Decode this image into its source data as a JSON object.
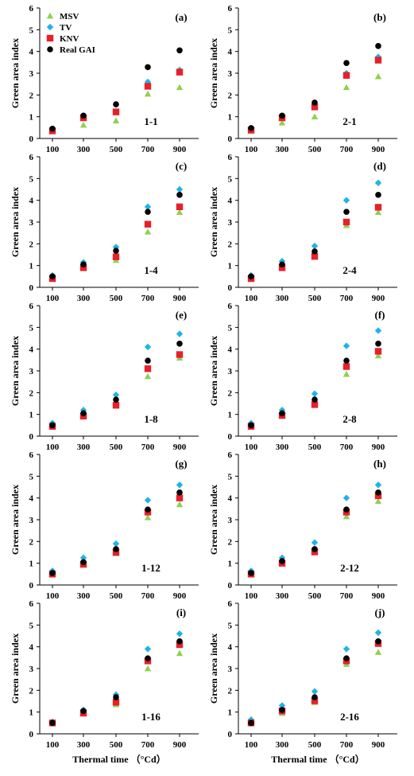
{
  "figure": {
    "xlabel": "Thermal time （°Cd）",
    "ylabel": "Green area index"
  },
  "legend": {
    "items": [
      {
        "label": "MSV",
        "color": "#92d050",
        "marker": "triangle"
      },
      {
        "label": "TV",
        "color": "#1fb4e6",
        "marker": "diamond"
      },
      {
        "label": "KNV",
        "color": "#e8202a",
        "marker": "square"
      },
      {
        "label": "Real GAI",
        "color": "#000000",
        "marker": "circle"
      }
    ]
  },
  "chart_data": [
    {
      "type": "scatter",
      "panel": "(a)",
      "code": "1-1",
      "x": [
        100,
        300,
        500,
        700,
        900
      ],
      "ylim": [
        0,
        6
      ],
      "yticks": [
        0,
        1,
        2,
        3,
        4,
        5,
        6
      ],
      "series": [
        {
          "name": "MSV",
          "values": [
            0.45,
            0.62,
            0.82,
            2.05,
            2.35
          ]
        },
        {
          "name": "TV",
          "values": [
            0.4,
            1.0,
            1.25,
            2.6,
            3.15
          ]
        },
        {
          "name": "KNV",
          "values": [
            0.35,
            0.95,
            1.22,
            2.4,
            3.05
          ]
        },
        {
          "name": "Real GAI",
          "values": [
            0.45,
            1.05,
            1.57,
            3.28,
            4.05
          ]
        }
      ]
    },
    {
      "type": "scatter",
      "panel": "(b)",
      "code": "2-1",
      "x": [
        100,
        300,
        500,
        700,
        900
      ],
      "ylim": [
        0,
        6
      ],
      "yticks": [
        0,
        1,
        2,
        3,
        4,
        5,
        6
      ],
      "series": [
        {
          "name": "MSV",
          "values": [
            0.45,
            0.72,
            1.0,
            2.35,
            2.85
          ]
        },
        {
          "name": "TV",
          "values": [
            0.42,
            1.0,
            1.45,
            3.0,
            3.75
          ]
        },
        {
          "name": "KNV",
          "values": [
            0.38,
            0.95,
            1.45,
            2.9,
            3.6
          ]
        },
        {
          "name": "Real GAI",
          "values": [
            0.48,
            1.05,
            1.65,
            3.47,
            4.25
          ]
        }
      ]
    },
    {
      "type": "scatter",
      "panel": "(c)",
      "code": "1-4",
      "x": [
        100,
        300,
        500,
        700,
        900
      ],
      "ylim": [
        0,
        6
      ],
      "yticks": [
        0,
        1,
        2,
        3,
        4,
        5,
        6
      ],
      "series": [
        {
          "name": "MSV",
          "values": [
            0.45,
            0.95,
            1.25,
            2.55,
            3.45
          ]
        },
        {
          "name": "TV",
          "values": [
            0.55,
            1.15,
            1.85,
            3.7,
            4.5
          ]
        },
        {
          "name": "KNV",
          "values": [
            0.4,
            0.9,
            1.4,
            2.9,
            3.7
          ]
        },
        {
          "name": "Real GAI",
          "values": [
            0.5,
            1.05,
            1.68,
            3.47,
            4.25
          ]
        }
      ]
    },
    {
      "type": "scatter",
      "panel": "(d)",
      "code": "2-4",
      "x": [
        100,
        300,
        500,
        700,
        900
      ],
      "ylim": [
        0,
        6
      ],
      "yticks": [
        0,
        1,
        2,
        3,
        4,
        5,
        6
      ],
      "series": [
        {
          "name": "MSV",
          "values": [
            0.45,
            0.95,
            1.45,
            2.85,
            3.45
          ]
        },
        {
          "name": "TV",
          "values": [
            0.55,
            1.2,
            1.9,
            4.0,
            4.8
          ]
        },
        {
          "name": "KNV",
          "values": [
            0.4,
            0.9,
            1.42,
            3.0,
            3.68
          ]
        },
        {
          "name": "Real GAI",
          "values": [
            0.5,
            1.05,
            1.65,
            3.47,
            4.25
          ]
        }
      ]
    },
    {
      "type": "scatter",
      "panel": "(e)",
      "code": "1-8",
      "x": [
        100,
        300,
        500,
        700,
        900
      ],
      "ylim": [
        0,
        6
      ],
      "yticks": [
        0,
        1,
        2,
        3,
        4,
        5,
        6
      ],
      "series": [
        {
          "name": "MSV",
          "values": [
            0.5,
            0.95,
            1.45,
            2.75,
            3.6
          ]
        },
        {
          "name": "TV",
          "values": [
            0.6,
            1.2,
            1.9,
            4.1,
            4.7
          ]
        },
        {
          "name": "KNV",
          "values": [
            0.45,
            0.92,
            1.42,
            3.1,
            3.75
          ]
        },
        {
          "name": "Real GAI",
          "values": [
            0.5,
            1.05,
            1.68,
            3.47,
            4.25
          ]
        }
      ]
    },
    {
      "type": "scatter",
      "panel": "(f)",
      "code": "2-8",
      "x": [
        100,
        300,
        500,
        700,
        900
      ],
      "ylim": [
        0,
        6
      ],
      "yticks": [
        0,
        1,
        2,
        3,
        4,
        5,
        6
      ],
      "series": [
        {
          "name": "MSV",
          "values": [
            0.5,
            0.95,
            1.5,
            2.85,
            3.7
          ]
        },
        {
          "name": "TV",
          "values": [
            0.6,
            1.2,
            1.95,
            4.15,
            4.85
          ]
        },
        {
          "name": "KNV",
          "values": [
            0.45,
            0.95,
            1.45,
            3.2,
            3.9
          ]
        },
        {
          "name": "Real GAI",
          "values": [
            0.5,
            1.05,
            1.68,
            3.47,
            4.25
          ]
        }
      ]
    },
    {
      "type": "scatter",
      "panel": "(g)",
      "code": "1-12",
      "x": [
        100,
        300,
        500,
        700,
        900
      ],
      "ylim": [
        0,
        6
      ],
      "yticks": [
        0,
        1,
        2,
        3,
        4,
        5,
        6
      ],
      "series": [
        {
          "name": "MSV",
          "values": [
            0.55,
            1.0,
            1.45,
            3.1,
            3.7
          ]
        },
        {
          "name": "TV",
          "values": [
            0.65,
            1.25,
            1.9,
            3.9,
            4.6
          ]
        },
        {
          "name": "KNV",
          "values": [
            0.5,
            0.95,
            1.5,
            3.35,
            4.0
          ]
        },
        {
          "name": "Real GAI",
          "values": [
            0.55,
            1.05,
            1.65,
            3.47,
            4.25
          ]
        }
      ]
    },
    {
      "type": "scatter",
      "panel": "(h)",
      "code": "2-12",
      "x": [
        100,
        300,
        500,
        700,
        900
      ],
      "ylim": [
        0,
        6
      ],
      "yticks": [
        0,
        1,
        2,
        3,
        4,
        5,
        6
      ],
      "series": [
        {
          "name": "MSV",
          "values": [
            0.55,
            1.0,
            1.5,
            3.15,
            3.85
          ]
        },
        {
          "name": "TV",
          "values": [
            0.65,
            1.25,
            1.95,
            4.0,
            4.6
          ]
        },
        {
          "name": "KNV",
          "values": [
            0.5,
            1.0,
            1.52,
            3.35,
            4.1
          ]
        },
        {
          "name": "Real GAI",
          "values": [
            0.55,
            1.1,
            1.65,
            3.47,
            4.25
          ]
        }
      ]
    },
    {
      "type": "scatter",
      "panel": "(i)",
      "code": "1-16",
      "x": [
        100,
        300,
        500,
        700,
        900
      ],
      "ylim": [
        0,
        6
      ],
      "yticks": [
        0,
        1,
        2,
        3,
        4,
        5,
        6
      ],
      "series": [
        {
          "name": "MSV",
          "values": [
            0.5,
            0.95,
            1.35,
            3.0,
            3.7
          ]
        },
        {
          "name": "TV",
          "values": [
            0.55,
            1.1,
            1.8,
            3.9,
            4.6
          ]
        },
        {
          "name": "KNV",
          "values": [
            0.5,
            0.95,
            1.45,
            3.35,
            4.1
          ]
        },
        {
          "name": "Real GAI",
          "values": [
            0.5,
            1.05,
            1.68,
            3.47,
            4.25
          ]
        }
      ]
    },
    {
      "type": "scatter",
      "panel": "(j)",
      "code": "2-16",
      "x": [
        100,
        300,
        500,
        700,
        900
      ],
      "ylim": [
        0,
        6
      ],
      "yticks": [
        0,
        1,
        2,
        3,
        4,
        5,
        6
      ],
      "series": [
        {
          "name": "MSV",
          "values": [
            0.5,
            0.95,
            1.45,
            3.2,
            3.75
          ]
        },
        {
          "name": "TV",
          "values": [
            0.65,
            1.3,
            1.95,
            3.9,
            4.65
          ]
        },
        {
          "name": "KNV",
          "values": [
            0.5,
            1.05,
            1.52,
            3.35,
            4.15
          ]
        },
        {
          "name": "Real GAI",
          "values": [
            0.5,
            1.1,
            1.68,
            3.47,
            4.25
          ]
        }
      ]
    }
  ]
}
